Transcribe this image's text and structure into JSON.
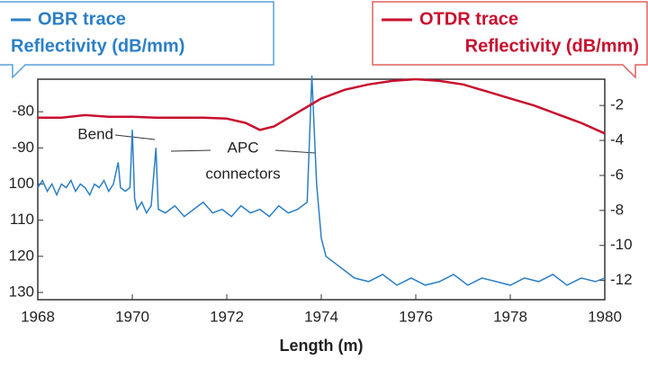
{
  "chart_data": {
    "type": "line",
    "xlabel": "Length (m)",
    "ylabel": "Reflectivity (dB/mm)",
    "y2label": "Reflectivity (dB/mm)",
    "xlim": [
      1968,
      1980
    ],
    "xticks": [
      1968,
      1970,
      1972,
      1974,
      1976,
      1978,
      1980
    ],
    "ylim": [
      -132,
      -71
    ],
    "yticks": [
      -80,
      -90,
      {
        "value": -100,
        "label": "100"
      },
      {
        "value": -110,
        "label": "110"
      },
      {
        "value": -120,
        "label": "120"
      },
      {
        "value": -130,
        "label": "130"
      }
    ],
    "y2lim": [
      -13.1,
      -0.5
    ],
    "y2ticks": [
      -2,
      -4,
      -6,
      -8,
      -10,
      -12
    ],
    "annotations": [
      "Bend",
      "APC",
      "connectors"
    ],
    "series": [
      {
        "name": "OBR trace",
        "color": "#2b7fc6",
        "axis": "y",
        "x": [
          1968.0,
          1968.1,
          1968.2,
          1968.3,
          1968.4,
          1968.5,
          1968.6,
          1968.7,
          1968.8,
          1968.9,
          1969.0,
          1969.1,
          1969.2,
          1969.3,
          1969.4,
          1969.5,
          1969.6,
          1969.7,
          1969.75,
          1969.85,
          1969.95,
          1970.0,
          1970.05,
          1970.1,
          1970.2,
          1970.3,
          1970.4,
          1970.5,
          1970.55,
          1970.7,
          1970.9,
          1971.1,
          1971.3,
          1971.5,
          1971.7,
          1971.9,
          1972.1,
          1972.3,
          1972.5,
          1972.7,
          1972.9,
          1973.1,
          1973.3,
          1973.5,
          1973.7,
          1973.8,
          1973.9,
          1974.0,
          1974.1,
          1974.3,
          1974.5,
          1974.7,
          1975.0,
          1975.3,
          1975.6,
          1975.9,
          1976.2,
          1976.5,
          1976.8,
          1977.1,
          1977.4,
          1977.7,
          1978.0,
          1978.3,
          1978.6,
          1978.9,
          1979.2,
          1979.5,
          1979.8,
          1980.0
        ],
        "values": [
          -101,
          -99,
          -102,
          -100,
          -103,
          -100,
          -101,
          -99,
          -102,
          -100,
          -101,
          -103,
          -100,
          -101,
          -99,
          -102,
          -100,
          -94,
          -101,
          -102,
          -101,
          -85,
          -104,
          -107,
          -105,
          -108,
          -106,
          -90,
          -107,
          -108,
          -106,
          -109,
          -107,
          -105,
          -108,
          -107,
          -109,
          -106,
          -108,
          -107,
          -109,
          -106,
          -108,
          -107,
          -105,
          -70,
          -100,
          -115,
          -120,
          -122,
          -124,
          -126,
          -127,
          -125,
          -128,
          -126,
          -128,
          -127,
          -125,
          -128,
          -126,
          -127,
          -128,
          -126,
          -127,
          -125,
          -128,
          -126,
          -127,
          -126
        ]
      },
      {
        "name": "OTDR trace",
        "color": "#c8102e",
        "axis": "y2",
        "x": [
          1968.0,
          1968.5,
          1969.0,
          1969.5,
          1970.0,
          1970.5,
          1971.0,
          1971.5,
          1972.0,
          1972.4,
          1972.7,
          1973.0,
          1973.5,
          1974.0,
          1974.5,
          1975.0,
          1975.5,
          1976.0,
          1976.5,
          1977.0,
          1977.5,
          1978.0,
          1978.5,
          1979.0,
          1979.5,
          1980.0
        ],
        "values": [
          -2.7,
          -2.7,
          -2.55,
          -2.65,
          -2.65,
          -2.7,
          -2.7,
          -2.7,
          -2.75,
          -3.0,
          -3.4,
          -3.2,
          -2.4,
          -1.6,
          -1.1,
          -0.8,
          -0.6,
          -0.5,
          -0.6,
          -0.8,
          -1.2,
          -1.6,
          -2.0,
          -2.5,
          -3.0,
          -3.6
        ]
      }
    ]
  }
}
